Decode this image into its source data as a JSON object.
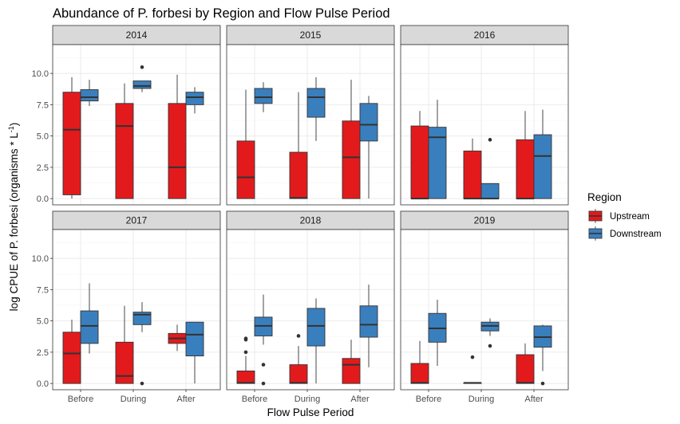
{
  "chart_data": {
    "type": "boxplot",
    "title": "Abundance of P. forbesi by Region and Flow Pulse Period",
    "xlabel": "Flow Pulse Period",
    "ylabel_main": "log CPUE of P. forbesi (organisms * L",
    "ylabel_sup": "-1",
    "ylabel_close": ")",
    "categories": [
      "Before",
      "During",
      "After"
    ],
    "ylim": [
      -0.5,
      12.3
    ],
    "yticks": [
      0.0,
      2.5,
      5.0,
      7.5,
      10.0
    ],
    "ytick_labels": [
      "0.0",
      "2.5",
      "5.0",
      "7.5",
      "10.0"
    ],
    "legend": {
      "title": "Region",
      "items": [
        {
          "name": "Upstream",
          "color": "#e31a1c"
        },
        {
          "name": "Downstream",
          "color": "#3a7fbd"
        }
      ]
    },
    "series_colors": {
      "Upstream": "#e31a1c",
      "Downstream": "#3a7fbd"
    },
    "facets": [
      {
        "label": "2014",
        "boxes": [
          {
            "region": "Upstream",
            "period": "Before",
            "min": 0.0,
            "q1": 0.3,
            "median": 5.5,
            "q3": 8.5,
            "max": 9.7,
            "outliers": []
          },
          {
            "region": "Downstream",
            "period": "Before",
            "min": 7.4,
            "q1": 7.8,
            "median": 8.1,
            "q3": 8.7,
            "max": 9.5,
            "outliers": []
          },
          {
            "region": "Upstream",
            "period": "During",
            "min": 0.0,
            "q1": 0.0,
            "median": 5.8,
            "q3": 7.6,
            "max": 9.2,
            "outliers": []
          },
          {
            "region": "Downstream",
            "period": "During",
            "min": 8.5,
            "q1": 8.8,
            "median": 9.0,
            "q3": 9.4,
            "max": 9.4,
            "outliers": [
              10.5
            ]
          },
          {
            "region": "Upstream",
            "period": "After",
            "min": 0.0,
            "q1": 0.0,
            "median": 2.5,
            "q3": 7.6,
            "max": 9.9,
            "outliers": []
          },
          {
            "region": "Downstream",
            "period": "After",
            "min": 6.8,
            "q1": 7.5,
            "median": 8.1,
            "q3": 8.5,
            "max": 8.9,
            "outliers": []
          }
        ]
      },
      {
        "label": "2015",
        "boxes": [
          {
            "region": "Upstream",
            "period": "Before",
            "min": 0.0,
            "q1": 0.0,
            "median": 1.7,
            "q3": 4.6,
            "max": 8.7,
            "outliers": []
          },
          {
            "region": "Downstream",
            "period": "Before",
            "min": 6.9,
            "q1": 7.6,
            "median": 8.1,
            "q3": 8.8,
            "max": 9.3,
            "outliers": []
          },
          {
            "region": "Upstream",
            "period": "During",
            "min": 0.0,
            "q1": 0.0,
            "median": 0.05,
            "q3": 3.7,
            "max": 8.5,
            "outliers": []
          },
          {
            "region": "Downstream",
            "period": "During",
            "min": 4.6,
            "q1": 6.5,
            "median": 8.1,
            "q3": 8.8,
            "max": 9.7,
            "outliers": []
          },
          {
            "region": "Upstream",
            "period": "After",
            "min": 0.0,
            "q1": 0.0,
            "median": 3.3,
            "q3": 6.2,
            "max": 9.5,
            "outliers": []
          },
          {
            "region": "Downstream",
            "period": "After",
            "min": 0.0,
            "q1": 4.6,
            "median": 5.9,
            "q3": 7.6,
            "max": 8.2,
            "outliers": []
          }
        ]
      },
      {
        "label": "2016",
        "boxes": [
          {
            "region": "Upstream",
            "period": "Before",
            "min": 0.0,
            "q1": 0.0,
            "median": 0.0,
            "q3": 5.8,
            "max": 7.0,
            "outliers": []
          },
          {
            "region": "Downstream",
            "period": "Before",
            "min": 0.0,
            "q1": 0.0,
            "median": 4.9,
            "q3": 5.7,
            "max": 7.9,
            "outliers": []
          },
          {
            "region": "Upstream",
            "period": "During",
            "min": 0.0,
            "q1": 0.0,
            "median": 0.0,
            "q3": 3.8,
            "max": 4.8,
            "outliers": []
          },
          {
            "region": "Downstream",
            "period": "During",
            "min": 0.0,
            "q1": 0.0,
            "median": 0.0,
            "q3": 1.2,
            "max": 1.2,
            "outliers": [
              4.7
            ]
          },
          {
            "region": "Upstream",
            "period": "After",
            "min": 0.0,
            "q1": 0.0,
            "median": 0.0,
            "q3": 4.7,
            "max": 7.0,
            "outliers": []
          },
          {
            "region": "Downstream",
            "period": "After",
            "min": 0.0,
            "q1": 0.0,
            "median": 3.4,
            "q3": 5.1,
            "max": 7.1,
            "outliers": []
          }
        ]
      },
      {
        "label": "2017",
        "boxes": [
          {
            "region": "Upstream",
            "period": "Before",
            "min": 0.0,
            "q1": 0.0,
            "median": 2.4,
            "q3": 4.1,
            "max": 5.1,
            "outliers": []
          },
          {
            "region": "Downstream",
            "period": "Before",
            "min": 2.4,
            "q1": 3.2,
            "median": 4.6,
            "q3": 5.8,
            "max": 8.0,
            "outliers": []
          },
          {
            "region": "Upstream",
            "period": "During",
            "min": 0.0,
            "q1": 0.0,
            "median": 0.6,
            "q3": 3.3,
            "max": 6.2,
            "outliers": []
          },
          {
            "region": "Downstream",
            "period": "During",
            "min": 4.1,
            "q1": 4.7,
            "median": 5.5,
            "q3": 5.7,
            "max": 6.5,
            "outliers": [
              0.0
            ]
          },
          {
            "region": "Upstream",
            "period": "After",
            "min": 2.6,
            "q1": 3.2,
            "median": 3.6,
            "q3": 4.0,
            "max": 4.7,
            "outliers": []
          },
          {
            "region": "Downstream",
            "period": "After",
            "min": 0.0,
            "q1": 2.2,
            "median": 3.9,
            "q3": 4.9,
            "max": 4.9,
            "outliers": []
          }
        ]
      },
      {
        "label": "2018",
        "boxes": [
          {
            "region": "Upstream",
            "period": "Before",
            "min": 0.0,
            "q1": 0.0,
            "median": 0.05,
            "q3": 1.0,
            "max": 2.2,
            "outliers": [
              2.5,
              3.5,
              3.6
            ]
          },
          {
            "region": "Downstream",
            "period": "Before",
            "min": 3.1,
            "q1": 3.8,
            "median": 4.6,
            "q3": 5.3,
            "max": 7.1,
            "outliers": [
              0.0,
              1.5
            ]
          },
          {
            "region": "Upstream",
            "period": "During",
            "min": 0.0,
            "q1": 0.0,
            "median": 0.05,
            "q3": 1.5,
            "max": 3.0,
            "outliers": [
              3.8
            ]
          },
          {
            "region": "Downstream",
            "period": "During",
            "min": 0.0,
            "q1": 3.0,
            "median": 4.6,
            "q3": 6.0,
            "max": 6.8,
            "outliers": []
          },
          {
            "region": "Upstream",
            "period": "After",
            "min": 0.0,
            "q1": 0.0,
            "median": 1.5,
            "q3": 2.0,
            "max": 3.5,
            "outliers": []
          },
          {
            "region": "Downstream",
            "period": "After",
            "min": 1.3,
            "q1": 3.7,
            "median": 4.7,
            "q3": 6.2,
            "max": 7.9,
            "outliers": []
          }
        ]
      },
      {
        "label": "2019",
        "boxes": [
          {
            "region": "Upstream",
            "period": "Before",
            "min": 0.0,
            "q1": 0.0,
            "median": 0.05,
            "q3": 1.6,
            "max": 3.4,
            "outliers": []
          },
          {
            "region": "Downstream",
            "period": "Before",
            "min": 1.4,
            "q1": 3.3,
            "median": 4.4,
            "q3": 5.6,
            "max": 6.7,
            "outliers": []
          },
          {
            "region": "Upstream",
            "period": "During",
            "min": 0.0,
            "q1": 0.0,
            "median": 0.05,
            "q3": 0.05,
            "max": 0.05,
            "outliers": [
              2.1
            ]
          },
          {
            "region": "Downstream",
            "period": "During",
            "min": 3.8,
            "q1": 4.2,
            "median": 4.6,
            "q3": 4.9,
            "max": 5.2,
            "outliers": [
              3.0
            ]
          },
          {
            "region": "Upstream",
            "period": "After",
            "min": 0.0,
            "q1": 0.0,
            "median": 0.05,
            "q3": 2.3,
            "max": 3.2,
            "outliers": []
          },
          {
            "region": "Downstream",
            "period": "After",
            "min": 1.0,
            "q1": 2.9,
            "median": 3.7,
            "q3": 4.6,
            "max": 4.7,
            "outliers": [
              0.0
            ]
          }
        ]
      }
    ]
  }
}
